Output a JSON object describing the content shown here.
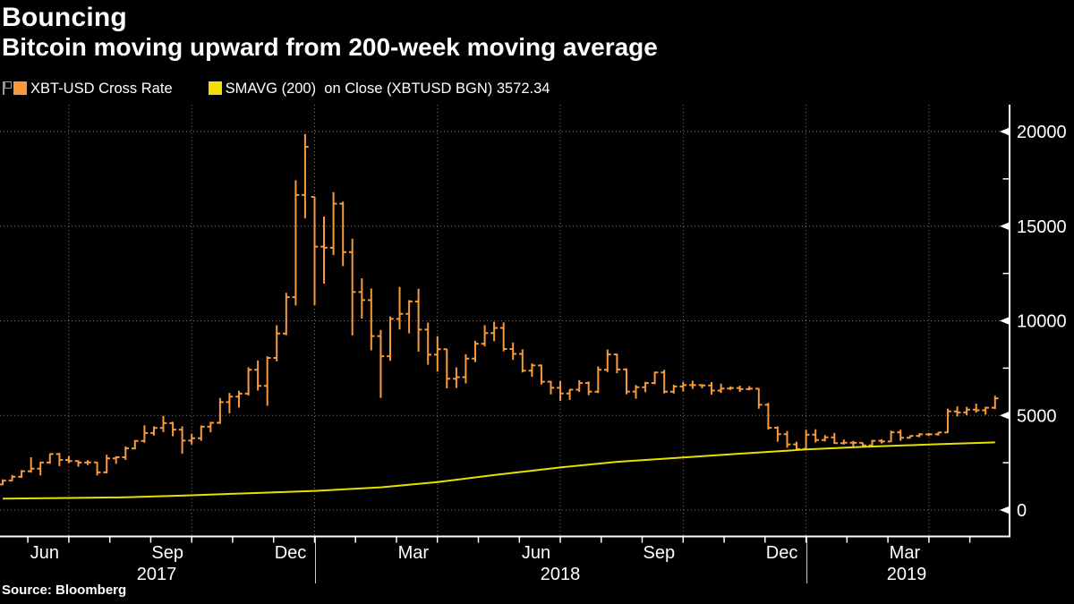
{
  "header": {
    "title": "Bouncing",
    "subtitle": "Bitcoin moving upward from 200-week moving average"
  },
  "legend": {
    "series1": "XBT-USD Cross Rate",
    "series2": "SMAVG (200)  on Close (XBTUSD BGN) 3572.34",
    "series1_color": "#F79A3E",
    "series2_color": "#F2E000"
  },
  "source": "Source: Bloomberg",
  "chart_data": {
    "type": "bar",
    "subtype": "weekly-ohlc-bars-with-moving-average-line",
    "title": "Bouncing",
    "subtitle": "Bitcoin moving upward from 200-week moving average",
    "x_span": "May 2017 - May 2019, weekly bars",
    "grid": true,
    "legend_position": "top",
    "ylim": [
      -1400,
      21400
    ],
    "y_ticks": [
      0,
      5000,
      10000,
      15000,
      20000
    ],
    "y_tick_labels": [
      "0",
      "5000",
      "10000",
      "15000",
      "20000"
    ],
    "y_minor_ticks": [
      2500,
      7500,
      12500,
      17500
    ],
    "x_tick_labels": [
      "Jun",
      "Sep",
      "Dec",
      "Mar",
      "Jun",
      "Sep",
      "Dec",
      "Mar"
    ],
    "year_labels": [
      "2017",
      "2018",
      "2019"
    ],
    "series": [
      {
        "name": "XBT-USD Cross Rate",
        "type": "ohlc",
        "color": "#F79A3E",
        "ohlc_weekly": [
          [
            1350,
            1620,
            1320,
            1555
          ],
          [
            1555,
            1850,
            1530,
            1760
          ],
          [
            1760,
            2110,
            1700,
            2050
          ],
          [
            2050,
            2790,
            1970,
            2190
          ],
          [
            2190,
            2550,
            1830,
            2510
          ],
          [
            2510,
            2990,
            2450,
            2960
          ],
          [
            2960,
            3020,
            2320,
            2650
          ],
          [
            2650,
            2840,
            2480,
            2590
          ],
          [
            2590,
            2630,
            2290,
            2510
          ],
          [
            2510,
            2640,
            2380,
            2520
          ],
          [
            2520,
            2540,
            1830,
            1990
          ],
          [
            1990,
            2920,
            1940,
            2730
          ],
          [
            2730,
            2840,
            2440,
            2790
          ],
          [
            2790,
            3360,
            2650,
            3260
          ],
          [
            3260,
            3700,
            3200,
            3650
          ],
          [
            3650,
            4480,
            3560,
            4070
          ],
          [
            4070,
            4420,
            3940,
            4340
          ],
          [
            4340,
            4980,
            4120,
            4590
          ],
          [
            4590,
            4660,
            3900,
            4250
          ],
          [
            4250,
            4420,
            2980,
            3670
          ],
          [
            3670,
            4040,
            3460,
            3790
          ],
          [
            3790,
            4470,
            3660,
            4400
          ],
          [
            4400,
            4660,
            4110,
            4610
          ],
          [
            4610,
            5920,
            4550,
            5700
          ],
          [
            5700,
            6190,
            5110,
            5990
          ],
          [
            5990,
            6300,
            5420,
            6150
          ],
          [
            6150,
            7540,
            6050,
            7410
          ],
          [
            7410,
            7900,
            6310,
            6560
          ],
          [
            6560,
            8120,
            5510,
            8040
          ],
          [
            8040,
            9770,
            7860,
            9330
          ],
          [
            9330,
            11480,
            9240,
            11250
          ],
          [
            11250,
            17430,
            10810,
            16650
          ],
          [
            16650,
            19870,
            15420,
            19190
          ],
          [
            16550,
            16550,
            10830,
            13920
          ],
          [
            13920,
            15510,
            11960,
            13860
          ],
          [
            13860,
            16800,
            13470,
            16190
          ],
          [
            16190,
            16300,
            12890,
            13630
          ],
          [
            13630,
            14340,
            9230,
            11520
          ],
          [
            11520,
            12240,
            10120,
            11090
          ],
          [
            11090,
            11700,
            8440,
            9190
          ],
          [
            9190,
            9520,
            5920,
            8130
          ],
          [
            8130,
            10230,
            7880,
            10100
          ],
          [
            10100,
            11790,
            9540,
            10370
          ],
          [
            10370,
            11090,
            9340,
            11020
          ],
          [
            11020,
            11690,
            8370,
            9530
          ],
          [
            9530,
            9900,
            7680,
            8210
          ],
          [
            8210,
            9180,
            7320,
            8500
          ],
          [
            8500,
            8510,
            6430,
            6940
          ],
          [
            6940,
            7540,
            6450,
            7020
          ],
          [
            7020,
            8230,
            6690,
            8000
          ],
          [
            8000,
            8940,
            7820,
            8790
          ],
          [
            8790,
            9770,
            8650,
            9350
          ],
          [
            9350,
            9950,
            8920,
            9620
          ],
          [
            9620,
            9910,
            8380,
            8510
          ],
          [
            8510,
            8850,
            7930,
            8250
          ],
          [
            8250,
            8490,
            7270,
            7360
          ],
          [
            7360,
            7750,
            7040,
            7640
          ],
          [
            7640,
            7690,
            6630,
            6780
          ],
          [
            6780,
            6830,
            6110,
            6460
          ],
          [
            6460,
            6810,
            5770,
            6160
          ],
          [
            6160,
            6390,
            5820,
            6360
          ],
          [
            6360,
            6860,
            6240,
            6710
          ],
          [
            6710,
            6800,
            6070,
            6250
          ],
          [
            6250,
            7590,
            6180,
            7410
          ],
          [
            7410,
            8480,
            7290,
            8220
          ],
          [
            8220,
            8270,
            7230,
            7430
          ],
          [
            7430,
            7490,
            6120,
            6260
          ],
          [
            6260,
            6610,
            5880,
            6490
          ],
          [
            6490,
            6770,
            6230,
            6710
          ],
          [
            6710,
            7310,
            6650,
            7270
          ],
          [
            7270,
            7410,
            6160,
            6250
          ],
          [
            6250,
            6620,
            6150,
            6530
          ],
          [
            6530,
            6770,
            6270,
            6600
          ],
          [
            6600,
            6830,
            6400,
            6600
          ],
          [
            6600,
            6650,
            6430,
            6580
          ],
          [
            6580,
            6760,
            6100,
            6310
          ],
          [
            6310,
            6680,
            6190,
            6420
          ],
          [
            6420,
            6540,
            6340,
            6450
          ],
          [
            6450,
            6570,
            6240,
            6390
          ],
          [
            6390,
            6550,
            6330,
            6410
          ],
          [
            6410,
            6430,
            5350,
            5560
          ],
          [
            5560,
            5670,
            4250,
            4350
          ],
          [
            4350,
            4420,
            3610,
            4010
          ],
          [
            4010,
            4180,
            3290,
            3470
          ],
          [
            3470,
            3610,
            3130,
            3230
          ],
          [
            3230,
            4240,
            3180,
            3980
          ],
          [
            3980,
            4270,
            3570,
            3700
          ],
          [
            3700,
            3960,
            3620,
            3840
          ],
          [
            3840,
            4080,
            3500,
            3530
          ],
          [
            3530,
            3730,
            3460,
            3560
          ],
          [
            3560,
            3650,
            3330,
            3550
          ],
          [
            3550,
            3560,
            3320,
            3420
          ],
          [
            3420,
            3710,
            3350,
            3660
          ],
          [
            3660,
            3740,
            3520,
            3620
          ],
          [
            3620,
            4200,
            3600,
            4110
          ],
          [
            4110,
            4240,
            3660,
            3820
          ],
          [
            3820,
            3940,
            3780,
            3920
          ],
          [
            3920,
            4060,
            3850,
            4000
          ],
          [
            4000,
            4070,
            3910,
            4000
          ],
          [
            4000,
            4120,
            3930,
            4100
          ],
          [
            4100,
            5350,
            4080,
            5210
          ],
          [
            5210,
            5480,
            4940,
            5160
          ],
          [
            5160,
            5450,
            5010,
            5310
          ],
          [
            5310,
            5620,
            5150,
            5270
          ],
          [
            5270,
            5460,
            5040,
            5410
          ],
          [
            5410,
            6040,
            5330,
            5900
          ]
        ]
      },
      {
        "name": "SMAVG (200) on Close (XBTUSD BGN)",
        "type": "line",
        "color": "#E8E000",
        "last_value": 3572.34,
        "points": [
          [
            0,
            600
          ],
          [
            7,
            640
          ],
          [
            13,
            670
          ],
          [
            20,
            780
          ],
          [
            26,
            890
          ],
          [
            33,
            1010
          ],
          [
            40,
            1200
          ],
          [
            46,
            1480
          ],
          [
            52,
            1850
          ],
          [
            59,
            2250
          ],
          [
            65,
            2550
          ],
          [
            72,
            2780
          ],
          [
            78,
            2980
          ],
          [
            85,
            3200
          ],
          [
            91,
            3340
          ],
          [
            98,
            3460
          ],
          [
            105,
            3572.34
          ]
        ]
      }
    ]
  }
}
